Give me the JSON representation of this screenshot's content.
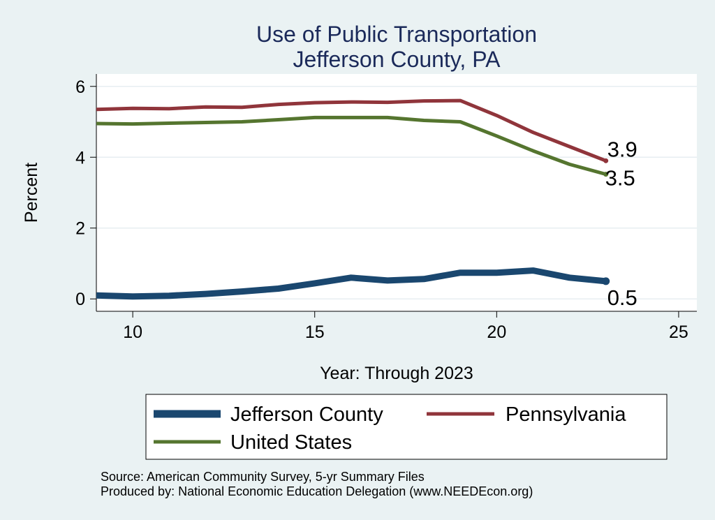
{
  "chart_data": {
    "type": "line",
    "title": "Use of Public Transportation",
    "subtitle": "Jefferson County, PA",
    "xlabel": "Year: Through 2023",
    "ylabel": "Percent",
    "xlim": [
      9,
      25
    ],
    "ylim": [
      0,
      6
    ],
    "xticks": [
      10,
      15,
      20,
      25
    ],
    "yticks": [
      0,
      2,
      4,
      6
    ],
    "grid": true,
    "legend_position": "bottom",
    "series": [
      {
        "name": "Jefferson County",
        "color": "#1a476f",
        "end_label": "0.5",
        "x": [
          9,
          10,
          11,
          12,
          13,
          14,
          15,
          16,
          17,
          18,
          19,
          20,
          21,
          22,
          23
        ],
        "y": [
          0.1,
          0.07,
          0.09,
          0.14,
          0.21,
          0.29,
          0.44,
          0.6,
          0.52,
          0.56,
          0.74,
          0.74,
          0.8,
          0.6,
          0.5
        ]
      },
      {
        "name": "Pennsylvania",
        "color": "#90353b",
        "end_label": "3.9",
        "x": [
          9,
          10,
          11,
          12,
          13,
          14,
          15,
          16,
          17,
          18,
          19,
          20,
          21,
          22,
          23
        ],
        "y": [
          5.35,
          5.38,
          5.37,
          5.42,
          5.41,
          5.49,
          5.54,
          5.56,
          5.55,
          5.59,
          5.6,
          5.18,
          4.7,
          4.3,
          3.9
        ]
      },
      {
        "name": "United States",
        "color": "#55752f",
        "end_label": "3.5",
        "x": [
          9,
          10,
          11,
          12,
          13,
          14,
          15,
          16,
          17,
          18,
          19,
          20,
          21,
          22,
          23
        ],
        "y": [
          4.95,
          4.94,
          4.96,
          4.98,
          5.0,
          5.06,
          5.12,
          5.12,
          5.12,
          5.04,
          5.0,
          4.6,
          4.18,
          3.8,
          3.52
        ]
      }
    ]
  },
  "notes": {
    "source": "Source: American Community Survey, 5-yr Summary Files",
    "produced_by": "Produced by: National Economic Education Delegation (www.NEEDEcon.org)"
  }
}
